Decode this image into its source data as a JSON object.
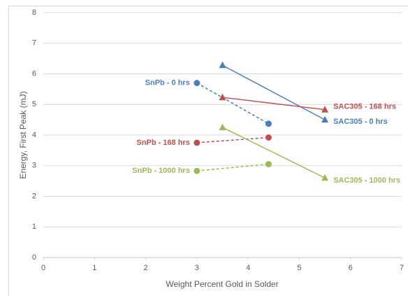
{
  "chart_data": {
    "type": "line",
    "x_label": "Weight Percent Gold in Solder",
    "y_label": "Energy, First Peak (mJ)",
    "xlim": [
      0,
      7
    ],
    "xticks": [
      0,
      1,
      2,
      3,
      4,
      5,
      6,
      7
    ],
    "ylim": [
      0,
      8
    ],
    "yticks": [
      0,
      1,
      2,
      3,
      4,
      5,
      6,
      7,
      8
    ],
    "grid": true,
    "series": [
      {
        "name": "SnPb - 0 hrs",
        "color": "#4a7ebb",
        "dashed": true,
        "marker": "circle",
        "x": [
          3,
          4.4
        ],
        "values": [
          5.7,
          4.37
        ]
      },
      {
        "name": "SnPb - 168 hrs",
        "color": "#c0504d",
        "dashed": true,
        "marker": "circle",
        "x": [
          3,
          4.4
        ],
        "values": [
          3.75,
          3.92
        ]
      },
      {
        "name": "SnPb - 1000 hrs",
        "color": "#9bbb59",
        "dashed": true,
        "marker": "circle",
        "x": [
          3,
          4.4
        ],
        "values": [
          2.83,
          3.05
        ]
      },
      {
        "name": "SAC305 - 0 hrs",
        "color": "#4a7ebb",
        "dashed": false,
        "marker": "triangle",
        "x": [
          3.5,
          5.5
        ],
        "values": [
          6.28,
          4.5
        ]
      },
      {
        "name": "SAC305 - 168 hrs",
        "color": "#c0504d",
        "dashed": false,
        "marker": "triangle",
        "x": [
          3.5,
          5.5
        ],
        "values": [
          5.23,
          4.83
        ]
      },
      {
        "name": "SAC305 - 1000 hrs",
        "color": "#9bbb59",
        "dashed": false,
        "marker": "triangle",
        "x": [
          3.5,
          5.5
        ],
        "values": [
          4.25,
          2.6
        ]
      }
    ]
  }
}
